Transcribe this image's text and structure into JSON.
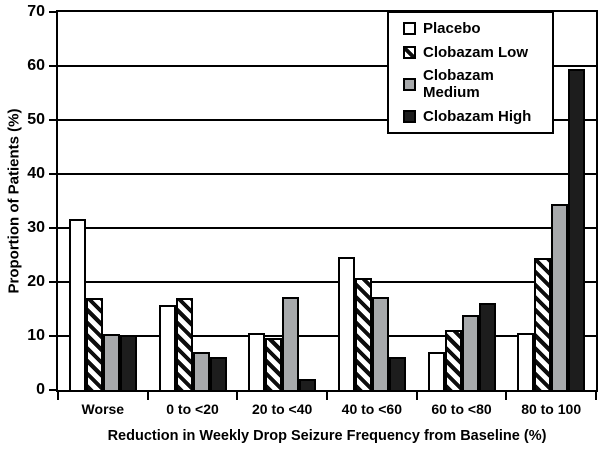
{
  "chart_data": {
    "type": "bar",
    "title": "",
    "categories": [
      "Worse",
      "0 to <20",
      "20 to <40",
      "40 to <60",
      "60 to <80",
      "80 to 100"
    ],
    "series": [
      {
        "name": "Placebo",
        "style": "placebo",
        "values": [
          31.6,
          15.8,
          10.6,
          24.6,
          7.0,
          10.6
        ]
      },
      {
        "name": "Clobazam Low",
        "style": "hatched",
        "values": [
          17.0,
          17.0,
          9.7,
          20.7,
          11.2,
          24.5
        ]
      },
      {
        "name": "Clobazam Medium",
        "style": "gray",
        "values": [
          10.4,
          7.0,
          17.2,
          17.2,
          13.8,
          34.4
        ]
      },
      {
        "name": "Clobazam High",
        "style": "black",
        "values": [
          10.2,
          6.1,
          2.0,
          6.1,
          16.2,
          59.4
        ]
      }
    ],
    "xlabel": "Reduction in Weekly Drop Seizure Frequency from Baseline (%)",
    "ylabel": "Proportion of Patients (%)",
    "ylim": [
      0,
      70
    ],
    "yticks": [
      0,
      10,
      20,
      30,
      40,
      50,
      60,
      70
    ],
    "grid": "horizontal",
    "legend_position": "top-right"
  },
  "colors": {
    "bar_gray": "#a7a9ab",
    "bar_black": "#1d1d1d",
    "axis": "#000000",
    "background": "#ffffff"
  }
}
